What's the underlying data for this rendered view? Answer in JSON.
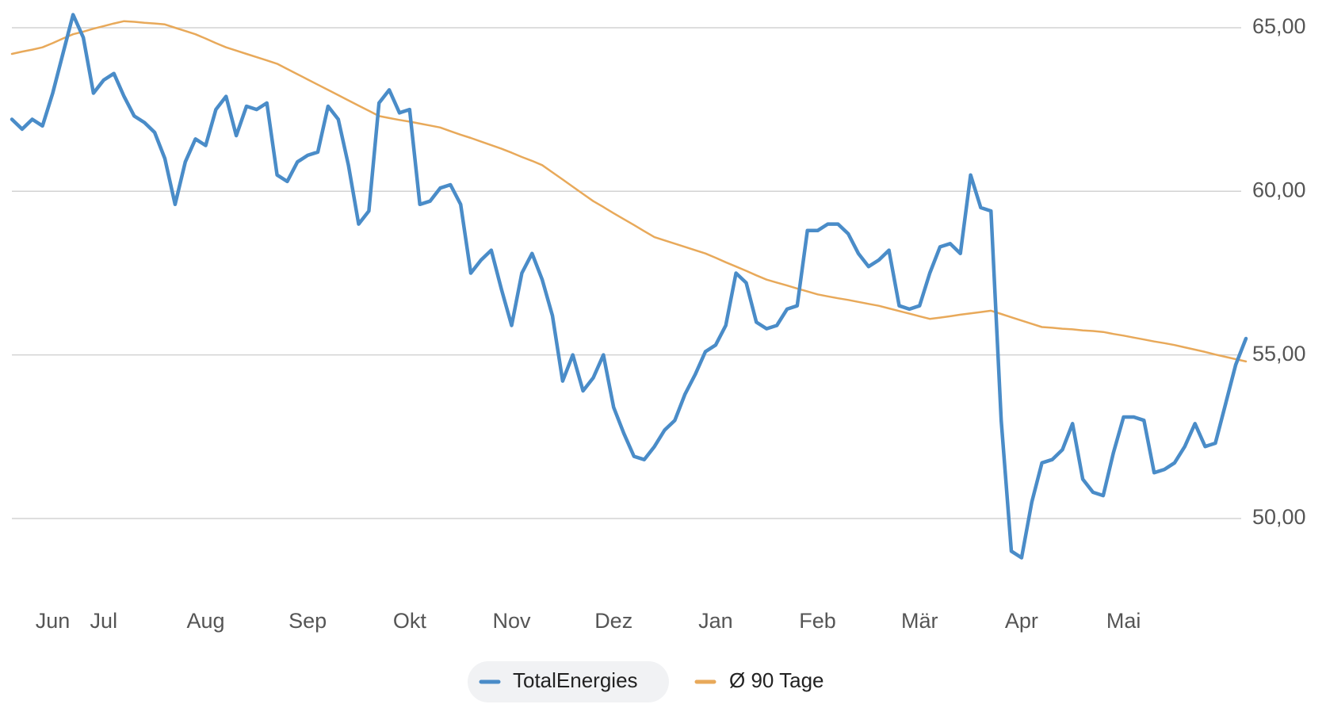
{
  "chart_data": {
    "type": "line",
    "categories": [
      null,
      null,
      null,
      null,
      "Jun",
      null,
      null,
      null,
      null,
      "Jul",
      null,
      null,
      null,
      null,
      null,
      null,
      null,
      null,
      null,
      "Aug",
      null,
      null,
      null,
      null,
      null,
      null,
      null,
      null,
      null,
      "Sep",
      null,
      null,
      null,
      null,
      null,
      null,
      null,
      null,
      null,
      "Okt",
      null,
      null,
      null,
      null,
      null,
      null,
      null,
      null,
      null,
      "Nov",
      null,
      null,
      null,
      null,
      null,
      null,
      null,
      null,
      null,
      "Dez",
      null,
      null,
      null,
      null,
      null,
      null,
      null,
      null,
      null,
      "Jan",
      null,
      null,
      null,
      null,
      null,
      null,
      null,
      null,
      null,
      "Feb",
      null,
      null,
      null,
      null,
      null,
      null,
      null,
      null,
      null,
      "Mär",
      null,
      null,
      null,
      null,
      null,
      null,
      null,
      null,
      null,
      "Apr",
      null,
      null,
      null,
      null,
      null,
      null,
      null,
      null,
      null,
      "Mai",
      null,
      null,
      null,
      null,
      null,
      null,
      null,
      null,
      null,
      null,
      null,
      null
    ],
    "series": [
      {
        "name": "TotalEnergies",
        "color": "#4a8cc8",
        "values": [
          62.2,
          61.9,
          62.2,
          62.0,
          63.0,
          64.2,
          65.4,
          64.7,
          63.0,
          63.4,
          63.6,
          62.9,
          62.3,
          62.1,
          61.8,
          61.0,
          59.6,
          60.9,
          61.6,
          61.4,
          62.5,
          62.9,
          61.7,
          62.6,
          62.5,
          62.7,
          60.5,
          60.3,
          60.9,
          61.1,
          61.2,
          62.6,
          62.2,
          60.8,
          59.0,
          59.4,
          62.7,
          63.1,
          62.4,
          62.5,
          59.6,
          59.7,
          60.1,
          60.2,
          59.6,
          57.5,
          57.9,
          58.2,
          57.0,
          55.9,
          57.5,
          58.1,
          57.3,
          56.2,
          54.2,
          55.0,
          53.9,
          54.3,
          55.0,
          53.4,
          52.6,
          51.9,
          51.8,
          52.2,
          52.7,
          53.0,
          53.8,
          54.4,
          55.1,
          55.3,
          55.9,
          57.5,
          57.2,
          56.0,
          55.8,
          55.9,
          56.4,
          56.5,
          58.8,
          58.8,
          59.0,
          59.0,
          58.7,
          58.1,
          57.7,
          57.9,
          58.2,
          56.5,
          56.4,
          56.5,
          57.5,
          58.3,
          58.4,
          58.1,
          60.5,
          59.5,
          59.4,
          53.0,
          49.0,
          48.8,
          50.5,
          51.7,
          51.8,
          52.1,
          52.9,
          51.2,
          50.8,
          50.7,
          52.0,
          53.1,
          53.1,
          53.0,
          51.4,
          51.5,
          51.7,
          52.2,
          52.9,
          52.2,
          52.3,
          53.5,
          54.7,
          55.5
        ]
      },
      {
        "name": "Ø 90 Tage",
        "color": "#e8a95a",
        "values": [
          64.2,
          64.27,
          64.33,
          64.4,
          64.53,
          64.67,
          64.8,
          64.88,
          64.97,
          65.05,
          65.13,
          65.2,
          65.18,
          65.15,
          65.13,
          65.1,
          65.0,
          64.9,
          64.8,
          64.67,
          64.53,
          64.4,
          64.3,
          64.2,
          64.1,
          64.0,
          63.9,
          63.74,
          63.58,
          63.42,
          63.26,
          63.1,
          62.94,
          62.78,
          62.62,
          62.46,
          62.3,
          62.24,
          62.18,
          62.13,
          62.07,
          62.01,
          61.95,
          61.84,
          61.73,
          61.63,
          61.52,
          61.41,
          61.3,
          61.18,
          61.05,
          60.93,
          60.8,
          60.58,
          60.36,
          60.14,
          59.92,
          59.7,
          59.52,
          59.33,
          59.15,
          58.97,
          58.78,
          58.6,
          58.5,
          58.4,
          58.3,
          58.2,
          58.1,
          57.97,
          57.83,
          57.7,
          57.57,
          57.43,
          57.3,
          57.21,
          57.12,
          57.03,
          56.94,
          56.85,
          56.79,
          56.73,
          56.68,
          56.62,
          56.56,
          56.5,
          56.42,
          56.34,
          56.26,
          56.18,
          56.1,
          56.14,
          56.18,
          56.23,
          56.27,
          56.31,
          56.35,
          56.25,
          56.15,
          56.05,
          55.95,
          55.85,
          55.83,
          55.8,
          55.78,
          55.75,
          55.73,
          55.7,
          55.64,
          55.59,
          55.53,
          55.47,
          55.41,
          55.36,
          55.3,
          55.23,
          55.16,
          55.09,
          55.01,
          54.94,
          54.87,
          54.8
        ]
      }
    ],
    "ylim": [
      47.6,
      65.6
    ],
    "yticks": [
      {
        "value": 50,
        "label": "50,00"
      },
      {
        "value": 55,
        "label": "55,00"
      },
      {
        "value": 60,
        "label": "60,00"
      },
      {
        "value": 65,
        "label": "65,00"
      }
    ],
    "grid": true
  }
}
